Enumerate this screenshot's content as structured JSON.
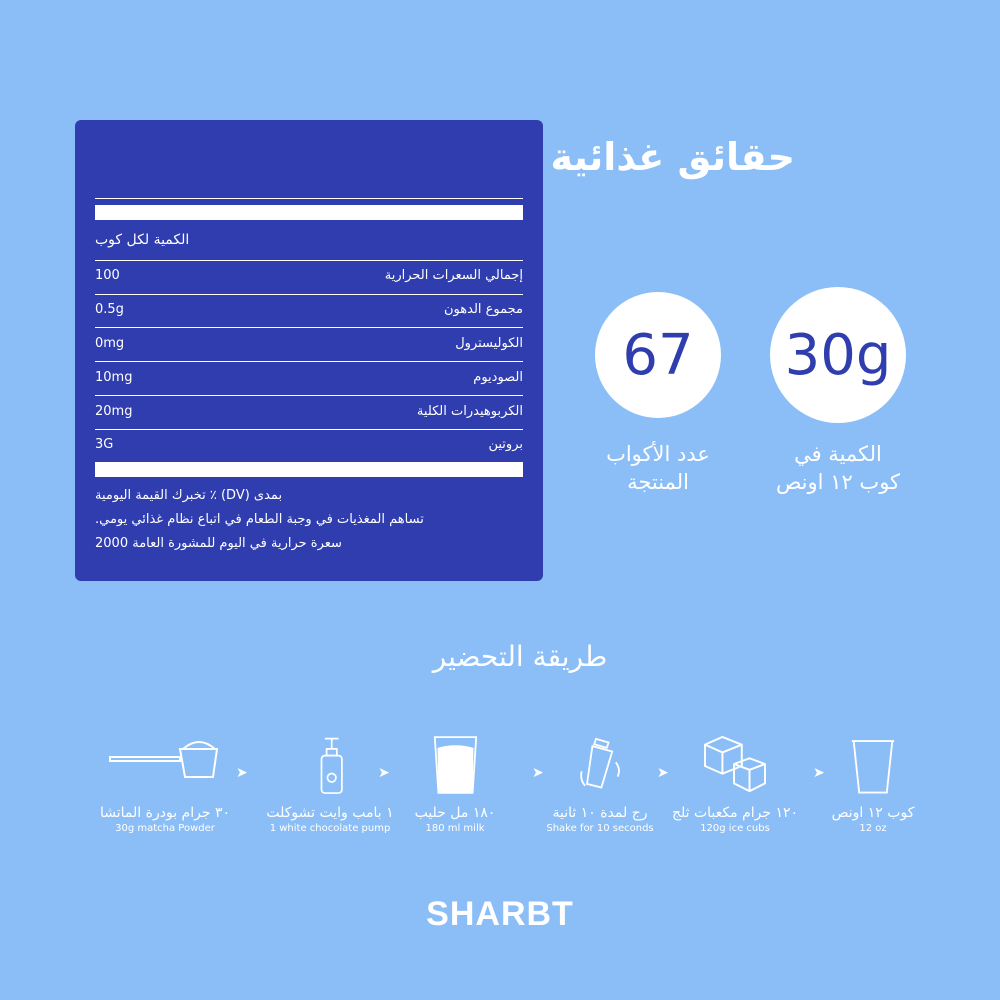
{
  "nutrition": {
    "title": "حقائق غذائية",
    "serving": "الكمية لكل كوب",
    "rows": [
      {
        "label": "إجمالي السعرات الحرارية",
        "value": "100"
      },
      {
        "label": "مجموع الدهون",
        "value": "0.5g"
      },
      {
        "label": "الكوليسترول",
        "value": "0mg"
      },
      {
        "label": "الصوديوم",
        "value": "10mg"
      },
      {
        "label": "الكربوهيدرات الكلية",
        "value": "20mg"
      },
      {
        "label": "بروتين",
        "value": "3G"
      }
    ],
    "notes": [
      "بمدى (DV) ٪ تخبرك القيمة اليومية",
      "تساهم المغذيات في وجبة الطعام في اتباع نظام غذائي يومي.",
      "سعرة حرارية في اليوم للمشورة العامة 2000"
    ]
  },
  "stats": [
    {
      "value": "67",
      "label_line1": "عدد الأكواب",
      "label_line2": "المنتجة"
    },
    {
      "value": "30g",
      "label_line1": "الكمية في",
      "label_line2": "كوب ١٢ اونص"
    }
  ],
  "preparation": {
    "title": "طريقة التحضير",
    "steps": [
      {
        "icon": "scoop-icon",
        "ar": "٣٠ جرام بودرة الماتشا",
        "en": "30g matcha Powder"
      },
      {
        "icon": "pump-bottle-icon",
        "ar": "١ بامب وايت تشوكلت",
        "en": "1 white chocolate pump"
      },
      {
        "icon": "milk-glass-icon",
        "ar": "١٨٠ مل حليب",
        "en": "180 ml milk"
      },
      {
        "icon": "shaker-icon",
        "ar": "رج لمدة ١٠ ثانية",
        "en": "Shake for 10 seconds"
      },
      {
        "icon": "ice-cubes-icon",
        "ar": "١٢٠ جرام مكعبات ثلج",
        "en": "120g ice cubs"
      },
      {
        "icon": "cup-icon",
        "ar": "كوب ١٢ اونص",
        "en": "12 oz"
      }
    ]
  },
  "brand": "SHARBT",
  "colors": {
    "background": "#8bbef6",
    "panel": "#2f3dae",
    "text": "#ffffff"
  }
}
